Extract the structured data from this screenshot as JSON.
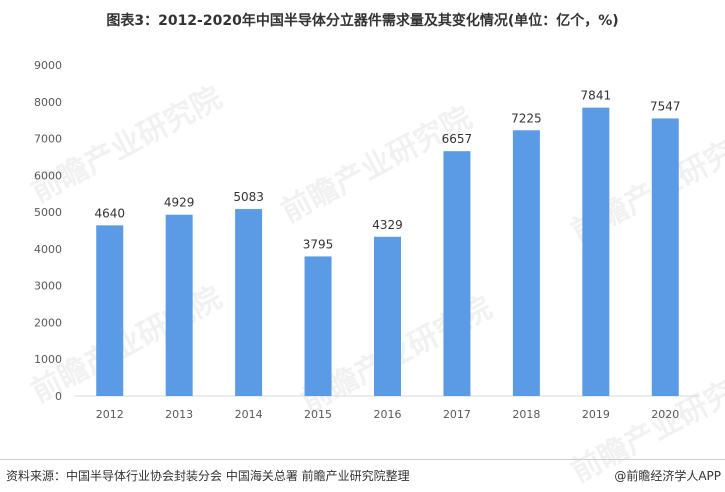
{
  "chart_data": {
    "type": "bar",
    "title": "图表3：2012-2020年中国半导体分立器件需求量及其变化情况(单位：亿个，%)",
    "categories": [
      "2012",
      "2013",
      "2014",
      "2015",
      "2016",
      "2017",
      "2018",
      "2019",
      "2020"
    ],
    "values": [
      4640,
      4929,
      5083,
      3795,
      4329,
      6657,
      7225,
      7841,
      7547
    ],
    "ylim": [
      0,
      9000
    ],
    "yticks": [
      0,
      1000,
      2000,
      3000,
      4000,
      5000,
      6000,
      7000,
      8000,
      9000
    ],
    "grid": false,
    "legend": false,
    "bar_color": "#5b9be5"
  },
  "footer": {
    "source": "资料来源：中国半导体行业协会封装分会 中国海关总署 前瞻产业研究院整理",
    "brand": "@前瞻经济学人APP"
  },
  "watermark": {
    "text": "前瞻产业研究院"
  }
}
